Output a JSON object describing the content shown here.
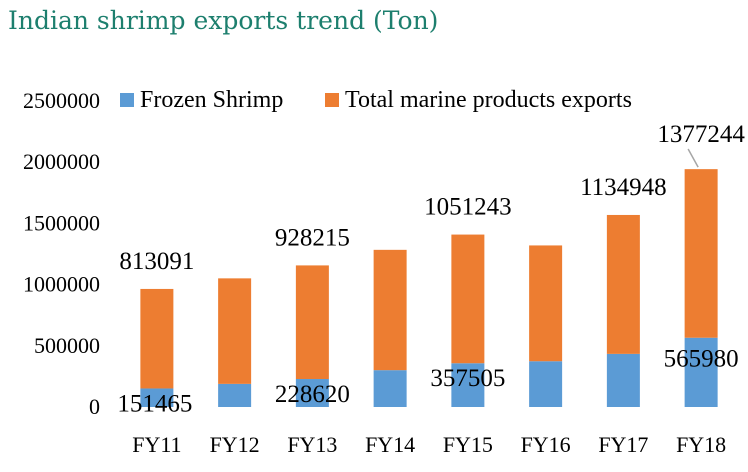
{
  "title": "Indian shrimp exports trend (Ton)",
  "chart_data": {
    "type": "bar",
    "stacked": true,
    "categories": [
      "FY11",
      "FY12",
      "FY13",
      "FY14",
      "FY15",
      "FY16",
      "FY17",
      "FY18"
    ],
    "series": [
      {
        "name": "Frozen Shrimp",
        "color": "#5b9bd5",
        "values": [
          151465,
          189000,
          228620,
          301000,
          357505,
          374000,
          434000,
          565980
        ]
      },
      {
        "name": "Total marine products exports",
        "color": "#ed7d31",
        "values": [
          813091,
          862000,
          928215,
          983000,
          1051243,
          946000,
          1134948,
          1377244
        ]
      }
    ],
    "data_labels": [
      {
        "category": "FY11",
        "series": "Frozen Shrimp",
        "text": "151465"
      },
      {
        "category": "FY13",
        "series": "Frozen Shrimp",
        "text": "228620"
      },
      {
        "category": "FY15",
        "series": "Frozen Shrimp",
        "text": "357505"
      },
      {
        "category": "FY18",
        "series": "Frozen Shrimp",
        "text": "565980"
      },
      {
        "category": "FY11",
        "series": "Total marine products exports",
        "text": "813091"
      },
      {
        "category": "FY13",
        "series": "Total marine products exports",
        "text": "928215"
      },
      {
        "category": "FY15",
        "series": "Total marine products exports",
        "text": "1051243"
      },
      {
        "category": "FY17",
        "series": "Total marine products exports",
        "text": "1134948"
      },
      {
        "category": "FY18",
        "series": "Total marine products exports",
        "text": "1377244"
      }
    ],
    "y_ticks": [
      "0",
      "500000",
      "1000000",
      "1500000",
      "2000000",
      "2500000"
    ],
    "ylim": [
      0,
      2500000
    ],
    "grid": false,
    "legend_position": "top"
  }
}
